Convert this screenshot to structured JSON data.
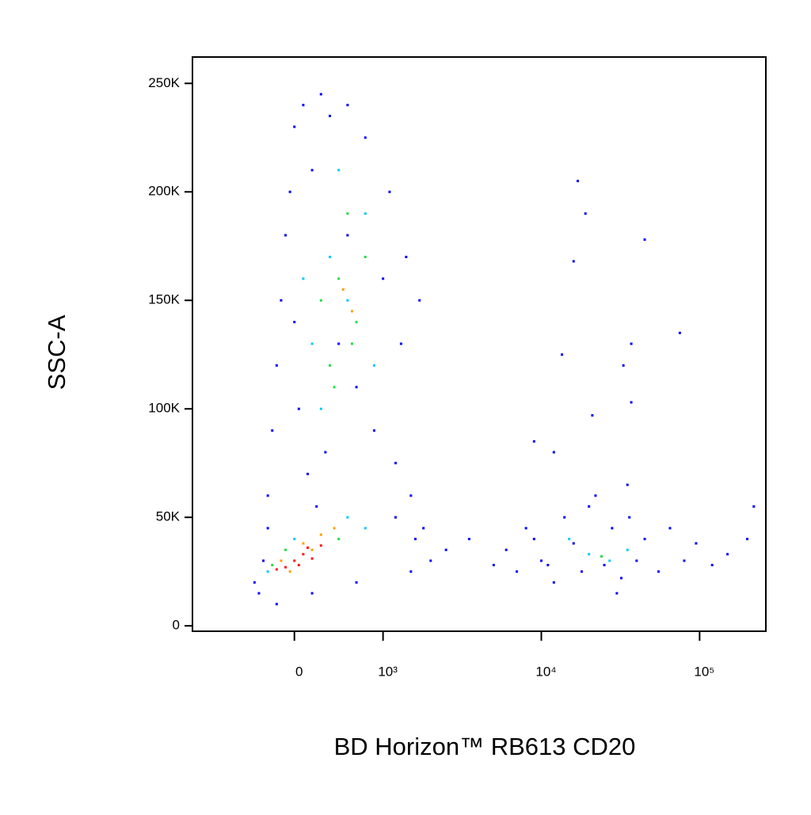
{
  "chart_data": {
    "type": "scatter",
    "x_label": "BD Horizon™ RB613 CD20",
    "y_label": "SSC-A",
    "xscale": "biexponential",
    "xlim": [
      -1150,
      262144
    ],
    "ylim": [
      -2500,
      262144
    ],
    "xticks": [
      0,
      {
        "value": 1000,
        "label": "10³"
      },
      {
        "value": 10000,
        "label": "10⁴"
      },
      {
        "value": 100000,
        "label": "10⁵"
      }
    ],
    "yticks": [
      0,
      {
        "value": 50000,
        "label": "50K"
      },
      {
        "value": 100000,
        "label": "100K"
      },
      {
        "value": 150000,
        "label": "150K"
      },
      {
        "value": 200000,
        "label": "200K"
      },
      {
        "value": 250000,
        "label": "250K"
      }
    ],
    "series": [
      {
        "color": "#0000ff",
        "x": [
          -300,
          -200,
          -100,
          0,
          100,
          200,
          300,
          400,
          600,
          800,
          1100,
          1400,
          1700,
          -250,
          -150,
          50,
          150,
          250,
          350,
          500,
          700,
          900,
          1200,
          1500,
          1800,
          -50,
          1000,
          1300,
          600,
          0,
          -350,
          -450,
          -400,
          -200,
          200,
          700,
          1500,
          2500,
          3500,
          2000,
          5000,
          1600,
          -300,
          1200,
          6000,
          7000,
          8000,
          10000,
          12000,
          14000,
          16000,
          18000,
          20000,
          25000,
          28000,
          32000,
          36000,
          40000,
          45000,
          55000,
          65000,
          80000,
          95000,
          120000,
          150000,
          22000,
          35000,
          11000,
          9000,
          30000,
          17000,
          19000,
          16000,
          45000,
          13500,
          37000,
          75000,
          33000,
          21000,
          37000,
          9000,
          12000,
          200000,
          220000
        ],
        "values": [
          60000,
          120000,
          180000,
          230000,
          240000,
          210000,
          245000,
          235000,
          240000,
          225000,
          200000,
          170000,
          150000,
          90000,
          150000,
          100000,
          70000,
          55000,
          80000,
          130000,
          110000,
          90000,
          75000,
          60000,
          45000,
          200000,
          160000,
          130000,
          180000,
          140000,
          30000,
          20000,
          15000,
          10000,
          15000,
          20000,
          25000,
          35000,
          40000,
          30000,
          28000,
          40000,
          45000,
          50000,
          35000,
          25000,
          45000,
          30000,
          20000,
          50000,
          38000,
          25000,
          55000,
          28000,
          45000,
          22000,
          50000,
          30000,
          40000,
          25000,
          45000,
          30000,
          38000,
          28000,
          33000,
          60000,
          65000,
          28000,
          40000,
          15000,
          205000,
          190000,
          168000,
          178000,
          125000,
          130000,
          135000,
          120000,
          97000,
          103000,
          85000,
          80000,
          40000,
          55000
        ]
      },
      {
        "color": "#00c8ff",
        "x": [
          400,
          600,
          200,
          800,
          300,
          900,
          500,
          100,
          0,
          -300,
          800,
          600,
          20000,
          27000,
          15000,
          35000
        ],
        "values": [
          170000,
          150000,
          130000,
          190000,
          100000,
          120000,
          210000,
          160000,
          40000,
          25000,
          45000,
          50000,
          33000,
          30000,
          40000,
          35000
        ]
      },
      {
        "color": "#22dd44",
        "x": [
          500,
          700,
          400,
          600,
          300,
          800,
          450,
          650,
          -100,
          500,
          -250,
          24000
        ],
        "values": [
          160000,
          140000,
          120000,
          190000,
          150000,
          170000,
          110000,
          130000,
          35000,
          40000,
          28000,
          32000
        ]
      },
      {
        "color": "#ffa000",
        "x": [
          550,
          650,
          -150,
          300,
          100,
          450,
          -50,
          200
        ],
        "values": [
          155000,
          145000,
          30000,
          42000,
          38000,
          45000,
          25000,
          35000
        ]
      },
      {
        "color": "#ff1010",
        "x": [
          0,
          -100,
          100,
          200,
          -200,
          50,
          300,
          150
        ],
        "values": [
          30000,
          27000,
          33000,
          31000,
          26000,
          28000,
          37000,
          36000
        ]
      }
    ]
  }
}
